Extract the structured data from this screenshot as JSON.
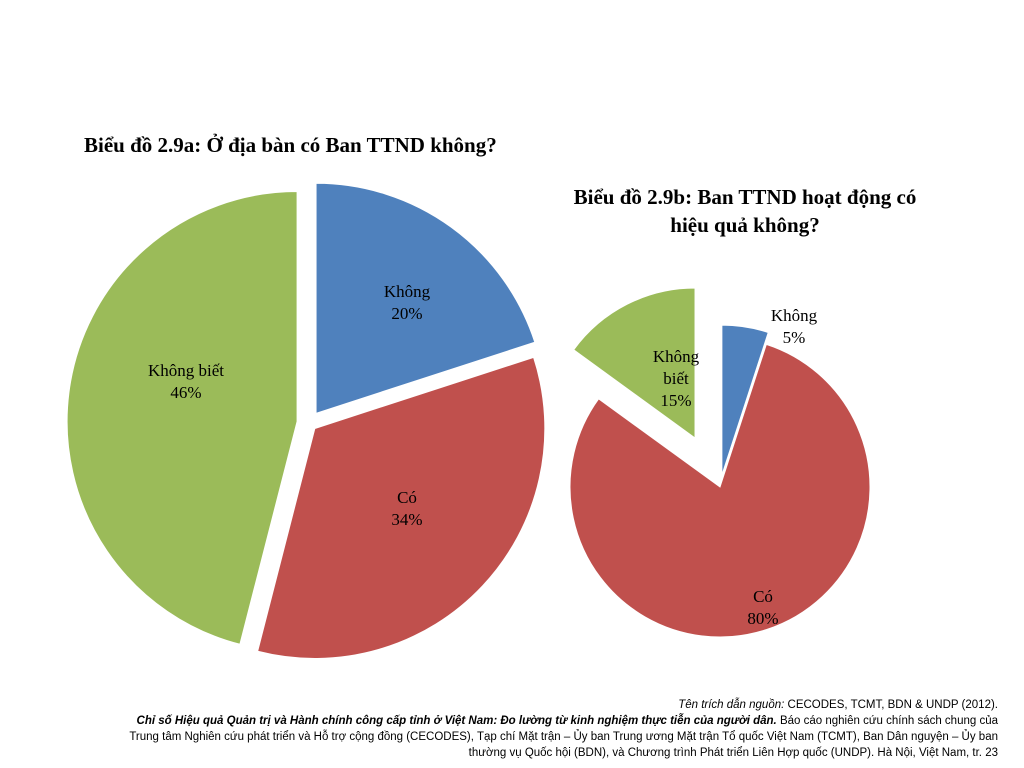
{
  "titles": {
    "chart_a": "Biểu đồ 2.9a: Ở địa bàn có Ban TTND không?",
    "chart_b_line1": "Biểu đồ 2.9b: Ban TTND hoạt động có",
    "chart_b_line2": "hiệu quả không?"
  },
  "chart_data": [
    {
      "type": "pie",
      "title": "Biểu đồ 2.9a: Ở địa bàn có Ban TTND không?",
      "slices": [
        {
          "label": "Không",
          "value": 20,
          "value_text": "20%",
          "color": "#4f81bd"
        },
        {
          "label": "Có",
          "value": 34,
          "value_text": "34%",
          "color": "#c0504d"
        },
        {
          "label": "Không biết",
          "value": 46,
          "value_text": "46%",
          "color": "#9bbb59"
        }
      ],
      "exploded": true,
      "legend": "none"
    },
    {
      "type": "pie",
      "title": "Biểu đồ 2.9b: Ban TTND hoạt động có hiệu quả không?",
      "slices": [
        {
          "label": "Không",
          "value": 5,
          "value_text": "5%",
          "color": "#4f81bd"
        },
        {
          "label": "Có",
          "value": 80,
          "value_text": "80%",
          "color": "#c0504d"
        },
        {
          "label": "Không biết",
          "label_lines": [
            "Không",
            "biết"
          ],
          "value": 15,
          "value_text": "15%",
          "color": "#9bbb59"
        }
      ],
      "exploded": true,
      "legend": "none"
    }
  ],
  "source": {
    "prefix": "Tên trích dẫn nguồn:",
    "citation": "CECODES, TCMT, BDN & UNDP (2012).",
    "report_title": "Chỉ số Hiệu quả Quản trị và Hành chính công cấp tỉnh ở Việt Nam: Đo lường từ kinh nghiệm thực tiễn của người dân.",
    "line2_rest": "Báo cáo nghiên cứu chính sách chung của",
    "line3": "Trung tâm Nghiên cứu phát triển và Hỗ trợ cộng đồng (CECODES), Tạp chí Mặt trận – Ủy ban Trung ương Mặt trận Tổ quốc Việt Nam (TCMT), Ban Dân nguyện – Ủy ban",
    "line4": "thường vụ Quốc hội (BDN), và Chương trình Phát triển Liên Hợp quốc (UNDP). Hà Nội, Việt Nam, tr. 23"
  }
}
